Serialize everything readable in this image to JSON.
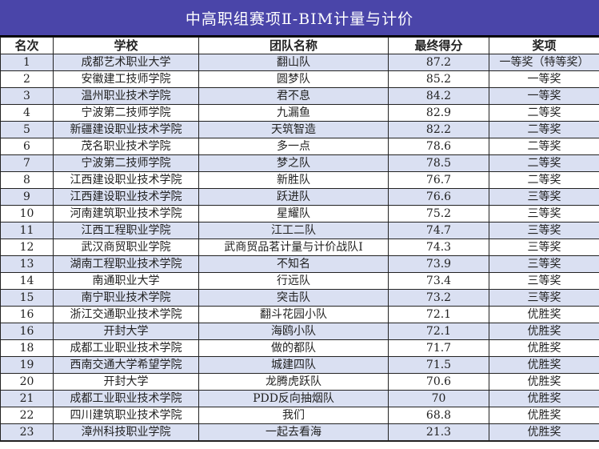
{
  "title": "中高职组赛项Ⅱ-BIM计量与计价",
  "headers": [
    "名次",
    "学校",
    "团队名称",
    "最终得分",
    "奖项"
  ],
  "rows": [
    [
      "1",
      "成都艺术职业大学",
      "翻山队",
      "87.2",
      "一等奖（特等奖）"
    ],
    [
      "2",
      "安徽建工技师学院",
      "圆梦队",
      "85.2",
      "一等奖"
    ],
    [
      "3",
      "温州职业技术学院",
      "君不息",
      "84.2",
      "一等奖"
    ],
    [
      "4",
      "宁波第二技师学院",
      "九漏鱼",
      "82.9",
      "二等奖"
    ],
    [
      "5",
      "新疆建设职业技术学院",
      "天筑智造",
      "82.2",
      "二等奖"
    ],
    [
      "6",
      "茂名职业技术学院",
      "多一点",
      "78.6",
      "二等奖"
    ],
    [
      "7",
      "宁波第二技师学院",
      "梦之队",
      "78.5",
      "二等奖"
    ],
    [
      "8",
      "江西建设职业技术学院",
      "新胜队",
      "76.7",
      "二等奖"
    ],
    [
      "9",
      "江西建设职业技术学院",
      "跃进队",
      "76.6",
      "三等奖"
    ],
    [
      "10",
      "河南建筑职业技术学院",
      "星耀队",
      "75.2",
      "三等奖"
    ],
    [
      "11",
      "江西工程职业学院",
      "江工二队",
      "74.7",
      "三等奖"
    ],
    [
      "12",
      "武汉商贸职业学院",
      "武商贸品茗计量与计价战队Ⅰ",
      "74.3",
      "三等奖"
    ],
    [
      "13",
      "湖南工程职业技术学院",
      "不知名",
      "73.9",
      "三等奖"
    ],
    [
      "14",
      "南通职业大学",
      "行远队",
      "73.4",
      "三等奖"
    ],
    [
      "15",
      "南宁职业技术学院",
      "突击队",
      "73.2",
      "三等奖"
    ],
    [
      "16",
      "浙江交通职业技术学院",
      "翻斗花园小队",
      "72.1",
      "优胜奖"
    ],
    [
      "16",
      "开封大学",
      "海鸥小队",
      "72.1",
      "优胜奖"
    ],
    [
      "18",
      "成都工业职业技术学院",
      "做的都队",
      "71.7",
      "优胜奖"
    ],
    [
      "19",
      "西南交通大学希望学院",
      "城建四队",
      "71.5",
      "优胜奖"
    ],
    [
      "20",
      "开封大学",
      "龙腾虎跃队",
      "70.6",
      "优胜奖"
    ],
    [
      "21",
      "成都工业职业技术学院",
      "PDD反向抽烟队",
      "70",
      "优胜奖"
    ],
    [
      "22",
      "四川建筑职业技术学院",
      "我们",
      "68.8",
      "优胜奖"
    ],
    [
      "23",
      "漳州科技职业学院",
      "一起去看海",
      "21.3",
      "优胜奖"
    ]
  ],
  "colors": {
    "title_bg": "#4a45a9",
    "odd_row": "#dae0f2"
  }
}
